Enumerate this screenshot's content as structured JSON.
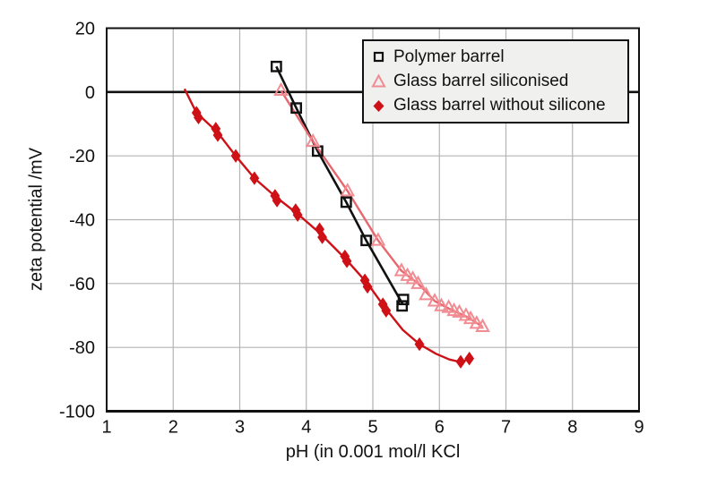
{
  "chart_data": {
    "type": "scatter",
    "title": "",
    "xlabel": "pH (in 0.001 mol/l KCl",
    "ylabel": "zeta potential /mV",
    "xlim": [
      1,
      9
    ],
    "ylim": [
      -100,
      20
    ],
    "xticks": [
      1,
      2,
      3,
      4,
      5,
      6,
      7,
      8,
      9
    ],
    "yticks": [
      20,
      0,
      -20,
      -40,
      -60,
      -80,
      -100
    ],
    "grid": true,
    "zero_line_y": 0,
    "legend": {
      "position": "top-right",
      "background": "#f0f0ee",
      "border_color": "#111111"
    },
    "colors": {
      "axis": "#111111",
      "gridline": "#b4b4b4",
      "plot_background": "#ffffff"
    },
    "series": [
      {
        "name": "Polymer barrel",
        "marker": "open-square",
        "line_color": "#111111",
        "marker_color": "#111111",
        "points": [
          [
            3.55,
            8
          ],
          [
            3.85,
            -5
          ],
          [
            4.17,
            -18.5
          ],
          [
            4.6,
            -34.5
          ],
          [
            4.9,
            -46.5
          ],
          [
            5.46,
            -65
          ],
          [
            5.44,
            -67
          ]
        ],
        "line": [
          [
            3.55,
            8
          ],
          [
            3.85,
            -5
          ],
          [
            4.17,
            -18.5
          ],
          [
            4.6,
            -34.5
          ],
          [
            4.9,
            -46.5
          ],
          [
            5.45,
            -66.5
          ]
        ]
      },
      {
        "name": "Glass barrel siliconised",
        "marker": "open-triangle",
        "line_color": "#e8666d",
        "marker_color": "#f08c92",
        "points": [
          [
            3.62,
            0.5
          ],
          [
            4.1,
            -15.5
          ],
          [
            4.62,
            -31
          ],
          [
            5.08,
            -46.5
          ],
          [
            5.43,
            -56
          ],
          [
            5.52,
            -57.5
          ],
          [
            5.6,
            -58.5
          ],
          [
            5.68,
            -60
          ],
          [
            5.8,
            -63.5
          ],
          [
            5.93,
            -65.5
          ],
          [
            6.03,
            -67
          ],
          [
            6.14,
            -67.5
          ],
          [
            6.22,
            -68.5
          ],
          [
            6.3,
            -69
          ],
          [
            6.4,
            -70
          ],
          [
            6.47,
            -71
          ],
          [
            6.56,
            -72.5
          ],
          [
            6.65,
            -73.5
          ]
        ],
        "line": [
          [
            3.62,
            0.5
          ],
          [
            4.1,
            -15.5
          ],
          [
            4.62,
            -31
          ],
          [
            5.08,
            -46.5
          ],
          [
            5.43,
            -56
          ],
          [
            5.68,
            -60
          ],
          [
            5.93,
            -65.5
          ],
          [
            6.14,
            -67.8
          ],
          [
            6.4,
            -70.3
          ],
          [
            6.65,
            -73.5
          ]
        ]
      },
      {
        "name": "Glass barrel without silicone",
        "marker": "filled-diamond",
        "line_color": "#ce1117",
        "marker_color": "#ce1117",
        "points": [
          [
            2.35,
            -6.5
          ],
          [
            2.38,
            -8
          ],
          [
            2.64,
            -11.5
          ],
          [
            2.67,
            -13.5
          ],
          [
            2.94,
            -20
          ],
          [
            3.22,
            -27
          ],
          [
            3.53,
            -32.5
          ],
          [
            3.56,
            -34
          ],
          [
            3.84,
            -37
          ],
          [
            3.87,
            -38.5
          ],
          [
            4.2,
            -43
          ],
          [
            4.24,
            -45.5
          ],
          [
            4.58,
            -51.5
          ],
          [
            4.61,
            -53
          ],
          [
            4.88,
            -59
          ],
          [
            4.92,
            -61
          ],
          [
            5.15,
            -66.5
          ],
          [
            5.2,
            -68.5
          ],
          [
            5.7,
            -79
          ],
          [
            6.32,
            -84.5
          ],
          [
            6.45,
            -83.5
          ]
        ],
        "line": [
          [
            2.17,
            1
          ],
          [
            2.35,
            -6.5
          ],
          [
            2.66,
            -12.5
          ],
          [
            2.94,
            -20
          ],
          [
            3.22,
            -27
          ],
          [
            3.55,
            -33
          ],
          [
            3.86,
            -38
          ],
          [
            4.22,
            -44.5
          ],
          [
            4.6,
            -52.5
          ],
          [
            4.92,
            -60
          ],
          [
            5.18,
            -67.5
          ],
          [
            5.45,
            -74.5
          ],
          [
            5.7,
            -79
          ],
          [
            5.95,
            -82
          ],
          [
            6.15,
            -83.8
          ],
          [
            6.32,
            -84.6
          ],
          [
            6.45,
            -83.6
          ]
        ]
      }
    ]
  }
}
